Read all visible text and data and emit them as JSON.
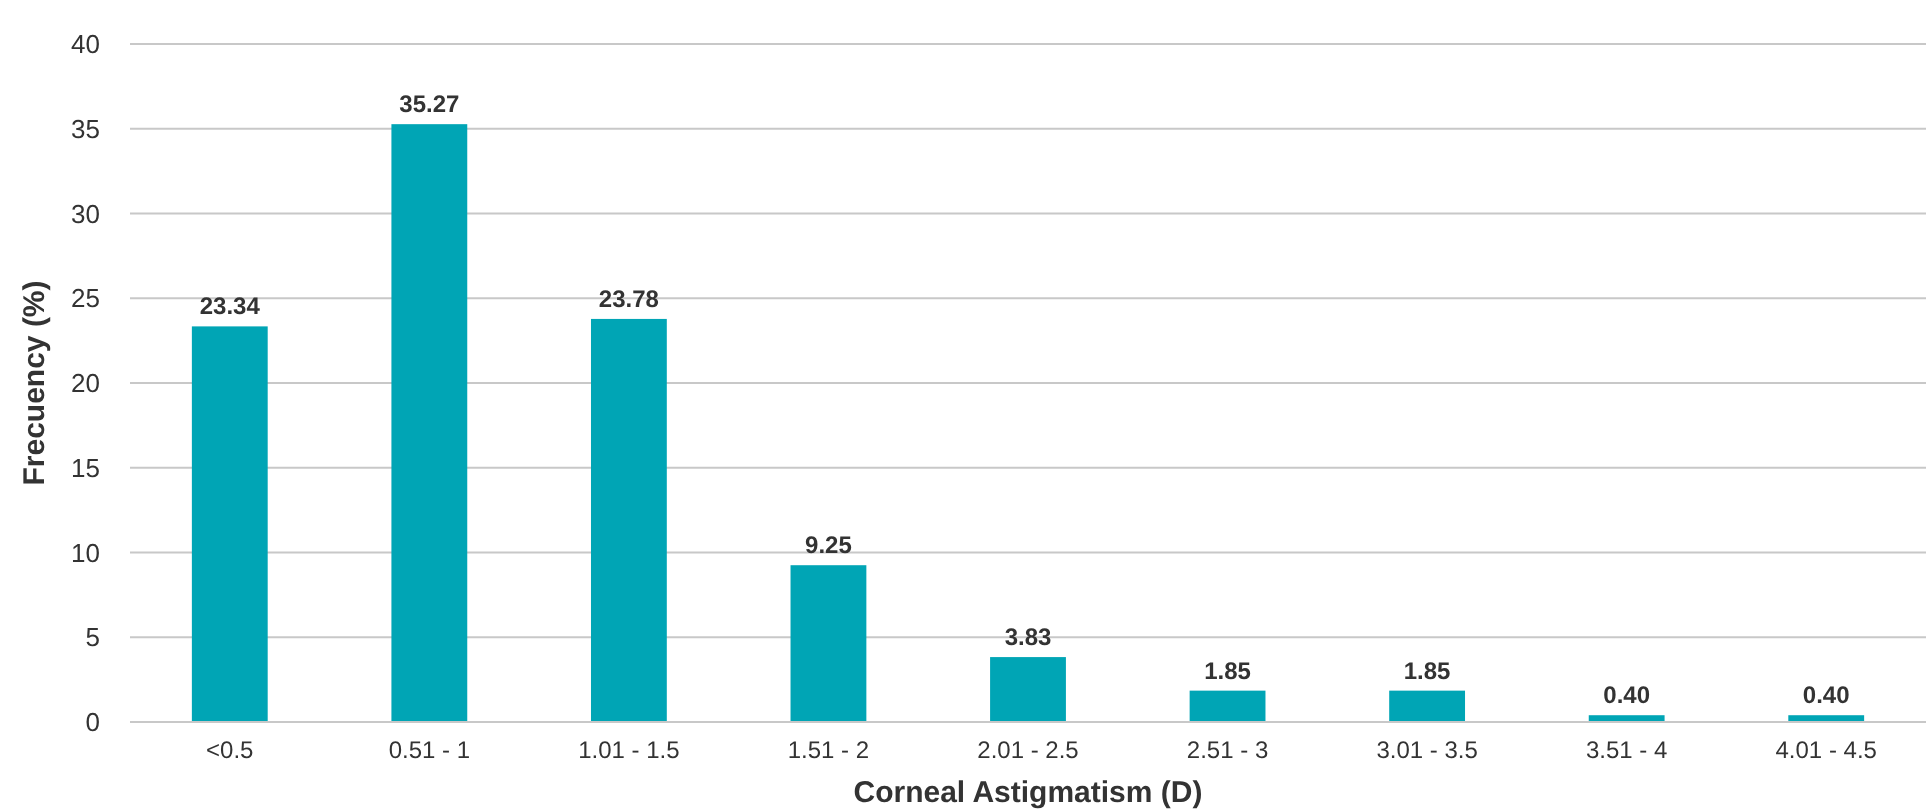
{
  "chart_data": {
    "type": "bar",
    "xlabel": "Corneal Astigmatism (D)",
    "ylabel": "Frecuency (%)",
    "categories": [
      "<0.5",
      "0.51 - 1",
      "1.01 - 1.5",
      "1.51 - 2",
      "2.01 - 2.5",
      "2.51 - 3",
      "3.01 - 3.5",
      "3.51 - 4",
      "4.01 - 4.5"
    ],
    "values": [
      23.34,
      35.27,
      23.78,
      9.25,
      3.83,
      1.85,
      1.85,
      0.4,
      0.4
    ],
    "value_labels": [
      "23.34",
      "35.27",
      "23.78",
      "9.25",
      "3.83",
      "1.85",
      "1.85",
      "0.40",
      "0.40"
    ],
    "color": "#00a5b5",
    "ylim": [
      0,
      40
    ],
    "yticks": [
      0,
      5,
      10,
      15,
      20,
      25,
      30,
      35,
      40
    ],
    "grid": "y"
  }
}
